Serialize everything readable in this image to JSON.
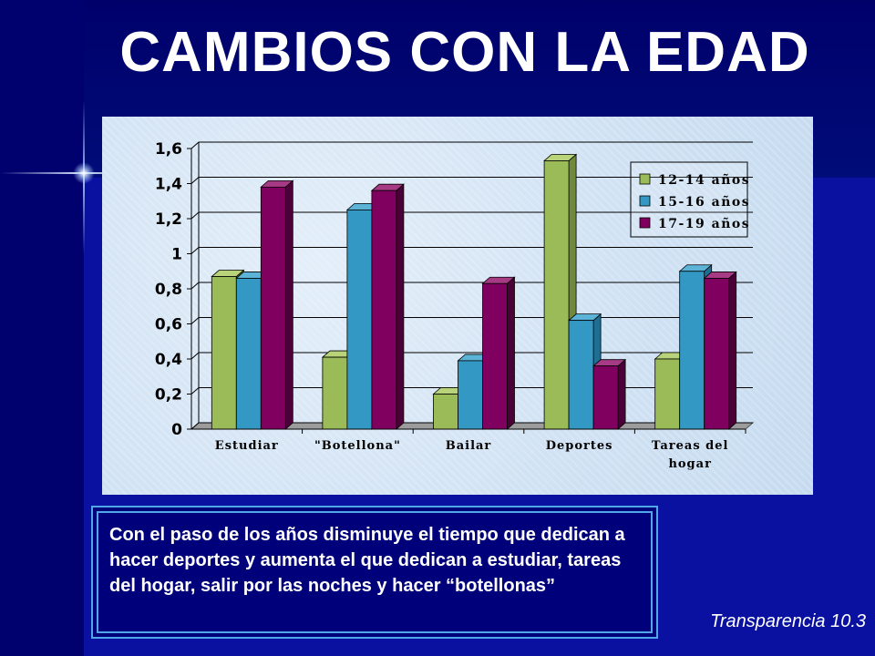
{
  "slide": {
    "title": "CAMBIOS CON LA EDAD",
    "caption": "Con el paso de los años disminuye el tiempo que dedican a hacer deportes y aumenta el que dedican a estudiar, tareas del hogar, salir por las noches y  hacer “botellonas”",
    "footer": "Transparencia 10.3"
  },
  "colors": {
    "series": [
      "#9bbb59",
      "#3399c4",
      "#800060"
    ],
    "series_side": [
      "#6f8a3b",
      "#1f6f94",
      "#4c0038"
    ],
    "series_top": [
      "#b8d37a",
      "#5cb3d8",
      "#a63a85"
    ]
  },
  "chart_data": {
    "type": "bar",
    "categories": [
      [
        "Estudiar"
      ],
      [
        "\"Botellona\""
      ],
      [
        "Bailar"
      ],
      [
        "Deportes"
      ],
      [
        "Tareas del",
        "hogar"
      ]
    ],
    "series": [
      {
        "name": "12-14 años",
        "values": [
          0.87,
          0.41,
          0.2,
          1.53,
          0.4
        ]
      },
      {
        "name": "15-16 años",
        "values": [
          0.86,
          1.25,
          0.39,
          0.62,
          0.9
        ]
      },
      {
        "name": "17-19 años",
        "values": [
          1.38,
          1.36,
          0.83,
          0.36,
          0.86
        ]
      }
    ],
    "ylim": [
      0,
      1.6
    ],
    "yticks": [
      "0",
      "0,2",
      "0,4",
      "0,6",
      "0,8",
      "1",
      "1,2",
      "1,4",
      "1,6"
    ],
    "grid": true,
    "legend_position": "top-right",
    "style": "3d-clustered-column"
  }
}
